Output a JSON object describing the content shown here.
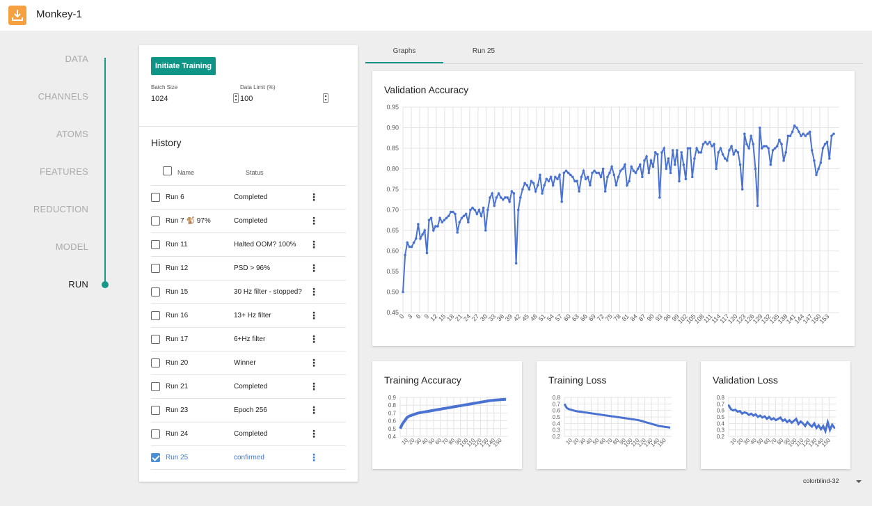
{
  "header": {
    "title": "Monkey-1",
    "icon": "download-box-icon"
  },
  "steps": [
    {
      "label": "DATA",
      "active": false
    },
    {
      "label": "CHANNELS",
      "active": false
    },
    {
      "label": "ATOMS",
      "active": false
    },
    {
      "label": "FEATURES",
      "active": false
    },
    {
      "label": "REDUCTION",
      "active": false
    },
    {
      "label": "MODEL",
      "active": false
    },
    {
      "label": "RUN",
      "active": true
    }
  ],
  "training": {
    "button_label": "Initiate Training",
    "batch_size_label": "Batch Size",
    "batch_size_value": "1024",
    "data_limit_label": "Data Limit (%)",
    "data_limit_value": "100"
  },
  "history": {
    "title": "History",
    "col_name": "Name",
    "col_status": "Status",
    "rows": [
      {
        "name": "Run 6",
        "status": "Completed",
        "checked": false
      },
      {
        "name": "Run 7 🐒 97%",
        "status": "Completed",
        "checked": false
      },
      {
        "name": "Run 11",
        "status": "Halted OOM? 100%",
        "checked": false
      },
      {
        "name": "Run 12",
        "status": "PSD > 96%",
        "checked": false
      },
      {
        "name": "Run 15",
        "status": "30 Hz filter - stopped?",
        "checked": false
      },
      {
        "name": "Run 16",
        "status": "13+ Hz filter",
        "checked": false
      },
      {
        "name": "Run 17",
        "status": "6+Hz filter",
        "checked": false
      },
      {
        "name": "Run 20",
        "status": "Winner",
        "checked": false
      },
      {
        "name": "Run 21",
        "status": "Completed",
        "checked": false
      },
      {
        "name": "Run 23",
        "status": "Epoch 256",
        "checked": false
      },
      {
        "name": "Run 24",
        "status": "Completed",
        "checked": false
      },
      {
        "name": "Run 25",
        "status": "confirmed",
        "checked": true
      }
    ]
  },
  "tabs": [
    {
      "label": "Graphs",
      "active": true
    },
    {
      "label": "Run 25",
      "active": false
    }
  ],
  "footer": {
    "palette": "colorblind-32"
  },
  "colors": {
    "accent": "#16978a",
    "series": "#4a72d0"
  },
  "chart_data": [
    {
      "type": "line",
      "title": "Validation Accuracy",
      "ylim": [
        0.45,
        0.95
      ],
      "yticks": [
        0.45,
        0.5,
        0.55,
        0.6,
        0.65,
        0.7,
        0.75,
        0.8,
        0.85,
        0.9,
        0.95
      ],
      "xlim": [
        0,
        157
      ],
      "xtick_step": 3,
      "grid": true,
      "series": [
        {
          "values": [
            0.5,
            0.59,
            0.62,
            0.61,
            0.61,
            0.62,
            0.63,
            0.665,
            0.63,
            0.64,
            0.65,
            0.595,
            0.675,
            0.68,
            0.65,
            0.66,
            0.66,
            0.68,
            0.67,
            0.675,
            0.68,
            0.685,
            0.695,
            0.695,
            0.69,
            0.645,
            0.67,
            0.68,
            0.685,
            0.69,
            0.67,
            0.7,
            0.705,
            0.7,
            0.69,
            0.7,
            0.685,
            0.705,
            0.65,
            0.7,
            0.73,
            0.74,
            0.71,
            0.73,
            0.74,
            0.73,
            0.725,
            0.73,
            0.73,
            0.72,
            0.745,
            0.74,
            0.57,
            0.7,
            0.73,
            0.75,
            0.765,
            0.76,
            0.75,
            0.77,
            0.765,
            0.745,
            0.76,
            0.785,
            0.74,
            0.76,
            0.775,
            0.77,
            0.78,
            0.76,
            0.78,
            0.775,
            0.785,
            0.72,
            0.79,
            0.795,
            0.79,
            0.785,
            0.78,
            0.77,
            0.77,
            0.745,
            0.78,
            0.795,
            0.775,
            0.78,
            0.76,
            0.79,
            0.795,
            0.79,
            0.79,
            0.78,
            0.8,
            0.745,
            0.78,
            0.79,
            0.805,
            0.785,
            0.76,
            0.78,
            0.795,
            0.8,
            0.81,
            0.76,
            0.77,
            0.805,
            0.795,
            0.79,
            0.8,
            0.81,
            0.78,
            0.82,
            0.83,
            0.79,
            0.82,
            0.805,
            0.84,
            0.835,
            0.73,
            0.84,
            0.85,
            0.8,
            0.825,
            0.79,
            0.845,
            0.81,
            0.845,
            0.77,
            0.84,
            0.81,
            0.775,
            0.85,
            0.85,
            0.78,
            0.825,
            0.85,
            0.84,
            0.84,
            0.86,
            0.865,
            0.86,
            0.865,
            0.855,
            0.86,
            0.8,
            0.84,
            0.85,
            0.835,
            0.825,
            0.82,
            0.845,
            0.855,
            0.835,
            0.845,
            0.84,
            0.81,
            0.75,
            0.885,
            0.86,
            0.85,
            0.88,
            0.86,
            0.8,
            0.71,
            0.9,
            0.85,
            0.855,
            0.855,
            0.85,
            0.81,
            0.845,
            0.85,
            0.855,
            0.87,
            0.86,
            0.82,
            0.84,
            0.88,
            0.88,
            0.89,
            0.905,
            0.9,
            0.89,
            0.88,
            0.885,
            0.88,
            0.885,
            0.89,
            0.845,
            0.82,
            0.785,
            0.8,
            0.815,
            0.85,
            0.86,
            0.865,
            0.825,
            0.88,
            0.885
          ]
        }
      ]
    },
    {
      "type": "line",
      "title": "Training Accuracy",
      "ylim": [
        0.4,
        0.9
      ],
      "yticks": [
        0.4,
        0.5,
        0.6,
        0.7,
        0.8,
        0.9
      ],
      "xlim": [
        0,
        160
      ],
      "xtick_step": 10,
      "grid": true,
      "series": [
        {
          "values": [
            0.5,
            0.56,
            0.6,
            0.64,
            0.66,
            0.67,
            0.68,
            0.69,
            0.7,
            0.705,
            0.71,
            0.715,
            0.72,
            0.725,
            0.73,
            0.735,
            0.74,
            0.745,
            0.75,
            0.755,
            0.76,
            0.765,
            0.77,
            0.775,
            0.78,
            0.785,
            0.79,
            0.795,
            0.8,
            0.805,
            0.81,
            0.815,
            0.82,
            0.825,
            0.83,
            0.835,
            0.84,
            0.845,
            0.85,
            0.855,
            0.86,
            0.862,
            0.865,
            0.868,
            0.87,
            0.872,
            0.874,
            0.875
          ]
        }
      ]
    },
    {
      "type": "line",
      "title": "Training Loss",
      "ylim": [
        0.2,
        0.8
      ],
      "yticks": [
        0.2,
        0.3,
        0.4,
        0.5,
        0.6,
        0.7,
        0.8
      ],
      "xlim": [
        0,
        160
      ],
      "xtick_step": 10,
      "grid": true,
      "series": [
        {
          "values": [
            0.7,
            0.64,
            0.62,
            0.61,
            0.6,
            0.59,
            0.585,
            0.58,
            0.575,
            0.57,
            0.565,
            0.56,
            0.555,
            0.55,
            0.545,
            0.54,
            0.535,
            0.53,
            0.525,
            0.52,
            0.515,
            0.51,
            0.505,
            0.5,
            0.495,
            0.49,
            0.485,
            0.48,
            0.475,
            0.47,
            0.465,
            0.46,
            0.455,
            0.45,
            0.44,
            0.43,
            0.42,
            0.41,
            0.4,
            0.39,
            0.38,
            0.37,
            0.36,
            0.355,
            0.35,
            0.345,
            0.34,
            0.335
          ]
        }
      ]
    },
    {
      "type": "line",
      "title": "Validation Loss",
      "ylim": [
        0.2,
        0.8
      ],
      "yticks": [
        0.2,
        0.3,
        0.4,
        0.5,
        0.6,
        0.7,
        0.8
      ],
      "xlim": [
        0,
        160
      ],
      "xtick_step": 10,
      "grid": true,
      "series": [
        {
          "values": [
            0.68,
            0.62,
            0.6,
            0.61,
            0.58,
            0.59,
            0.55,
            0.57,
            0.56,
            0.53,
            0.55,
            0.52,
            0.54,
            0.5,
            0.52,
            0.49,
            0.51,
            0.47,
            0.5,
            0.46,
            0.48,
            0.45,
            0.47,
            0.49,
            0.44,
            0.46,
            0.42,
            0.45,
            0.41,
            0.44,
            0.47,
            0.39,
            0.43,
            0.4,
            0.36,
            0.42,
            0.38,
            0.35,
            0.4,
            0.33,
            0.37,
            0.31,
            0.36,
            0.28,
            0.42,
            0.3,
            0.38,
            0.33
          ]
        }
      ]
    }
  ]
}
